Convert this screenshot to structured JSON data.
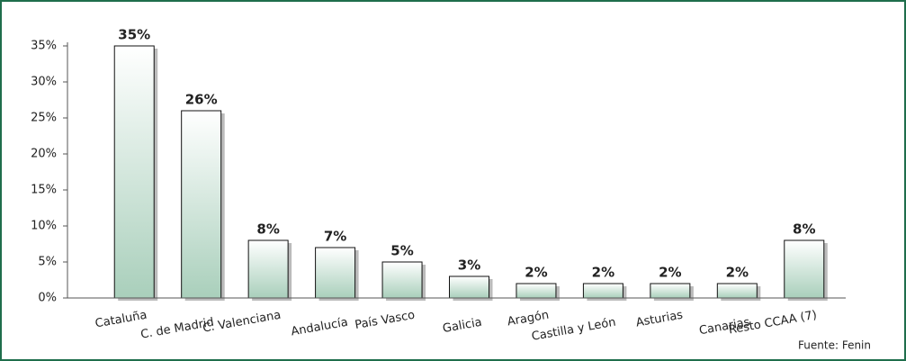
{
  "chart_data": {
    "type": "bar",
    "categories": [
      "Cataluña",
      "C. de Madrid",
      "C. Valenciana",
      "Andalucía",
      "País Vasco",
      "Galicia",
      "Aragón",
      "Castilla y León",
      "Asturias",
      "Canarias",
      "Resto CCAA (7)"
    ],
    "values": [
      35,
      26,
      8,
      7,
      5,
      3,
      2,
      2,
      2,
      2,
      8
    ],
    "value_labels": [
      "35%",
      "26%",
      "8%",
      "7%",
      "5%",
      "3%",
      "2%",
      "2%",
      "2%",
      "2%",
      "8%"
    ],
    "color": "#a9cfbb",
    "ylim": [
      0,
      35
    ],
    "yticks": [
      {
        "value": 0,
        "label": "0%"
      },
      {
        "value": 5,
        "label": "5%"
      },
      {
        "value": 10,
        "label": "10%"
      },
      {
        "value": 15,
        "label": "15%"
      },
      {
        "value": 20,
        "label": "20%"
      },
      {
        "value": 25,
        "label": "25%"
      },
      {
        "value": 30,
        "label": "30%"
      },
      {
        "value": 35,
        "label": "35%"
      }
    ],
    "source": "Fuente: Fenin"
  }
}
